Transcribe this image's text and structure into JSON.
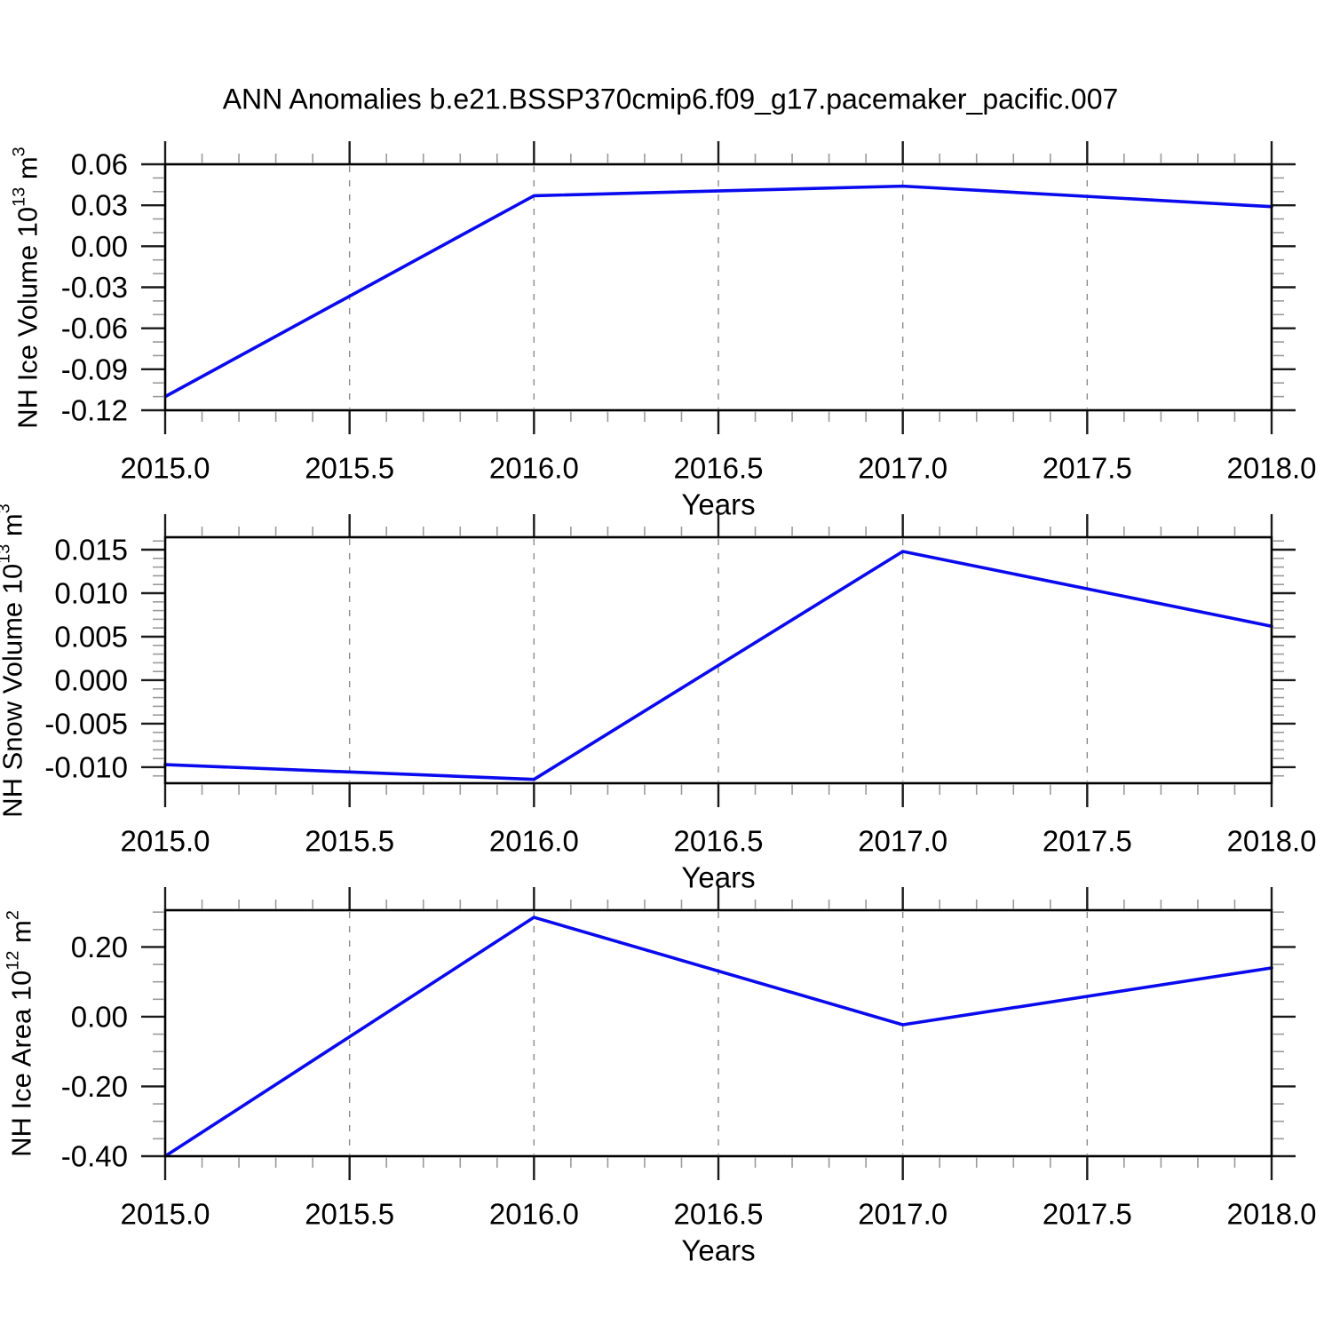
{
  "title": "ANN Anomalies b.e21.BSSP370cmip6.f09_g17.pacemaker_pacific.007",
  "colors": {
    "background": "#ffffff",
    "text": "#000000",
    "line": "#0a0aee",
    "frame": "#000000",
    "major_tick": "#1a1a1a",
    "minor_tick": "#9a9a9a",
    "grid": "#8c8c8c"
  },
  "x_axis": {
    "label": "Years",
    "range": [
      2015.0,
      2018.0
    ],
    "tick_values": [
      2015.0,
      2015.5,
      2016.0,
      2016.5,
      2017.0,
      2017.5,
      2018.0
    ],
    "tick_labels": [
      "2015.0",
      "2015.5",
      "2016.0",
      "2016.5",
      "2017.0",
      "2017.5",
      "2018.0"
    ],
    "minor_step": 0.1,
    "grid_values": [
      2015.5,
      2016.0,
      2016.5,
      2017.0,
      2017.5
    ],
    "grid_style": "dashed"
  },
  "chart_data": [
    {
      "type": "line",
      "ylabel": "NH Ice Volume 10^13 m^3",
      "ylabel_rich": [
        [
          "NH Ice Volume 10",
          false
        ],
        [
          "13",
          true
        ],
        [
          " m",
          false
        ],
        [
          "3",
          true
        ]
      ],
      "x": [
        2015.0,
        2016.0,
        2017.0,
        2018.0
      ],
      "values": [
        -0.11,
        0.037,
        0.044,
        0.029
      ],
      "ylim": [
        -0.12,
        0.06
      ],
      "yticks": {
        "values": [
          0.06,
          0.03,
          0.0,
          -0.03,
          -0.06,
          -0.09,
          -0.12
        ],
        "labels": [
          "0.06",
          "0.03",
          "0.00",
          "-0.03",
          "-0.06",
          "-0.09",
          "-0.12"
        ]
      },
      "y_minor_step": 0.01,
      "grid": "vertical-only",
      "legend": "none"
    },
    {
      "type": "line",
      "ylabel": "NH Snow Volume 10^13 m^3",
      "ylabel_rich": [
        [
          "NH Snow Volume 10",
          false
        ],
        [
          "13",
          true
        ],
        [
          " m",
          false
        ],
        [
          "3",
          true
        ]
      ],
      "x": [
        2015.0,
        2016.0,
        2017.0,
        2018.0
      ],
      "values": [
        -0.0097,
        -0.0114,
        0.0148,
        0.0062
      ],
      "ylim": [
        -0.01184,
        0.01643
      ],
      "yticks": {
        "values": [
          0.015,
          0.01,
          0.005,
          0.0,
          -0.005,
          -0.01
        ],
        "labels": [
          "0.015",
          "0.010",
          "0.005",
          "0.000",
          "-0.005",
          "-0.010"
        ]
      },
      "y_minor_step": 0.001,
      "grid": "vertical-only",
      "legend": "none"
    },
    {
      "type": "line",
      "ylabel": "NH Ice Area 10^12 m^2",
      "ylabel_rich": [
        [
          "NH Ice Area 10",
          false
        ],
        [
          "12",
          true
        ],
        [
          " m",
          false
        ],
        [
          "2",
          true
        ]
      ],
      "x": [
        2015.0,
        2016.0,
        2017.0,
        2018.0
      ],
      "values": [
        -0.4,
        0.285,
        -0.023,
        0.14
      ],
      "ylim": [
        -0.4,
        0.3055
      ],
      "yticks": {
        "values": [
          0.2,
          0.0,
          -0.2,
          -0.4
        ],
        "labels": [
          "0.20",
          "0.00",
          "-0.20",
          "-0.40"
        ]
      },
      "y_minor_step": 0.05,
      "grid": "vertical-only",
      "legend": "none"
    }
  ]
}
